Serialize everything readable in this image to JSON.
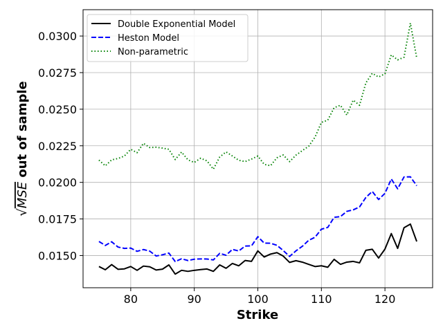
{
  "chart_data": {
    "type": "line",
    "title": "",
    "xlabel": "Strike",
    "ylabel_prefix": "√",
    "ylabel_italic": "MSE",
    "ylabel_suffix": " out of sample",
    "xlim": [
      72.5,
      127.5
    ],
    "ylim": [
      0.0128,
      0.0318
    ],
    "xticks": [
      80,
      90,
      100,
      110,
      120
    ],
    "xtick_labels": [
      "80",
      "90",
      "100",
      "110",
      "120"
    ],
    "yticks": [
      0.015,
      0.0175,
      0.02,
      0.0225,
      0.025,
      0.0275,
      0.03
    ],
    "ytick_labels": [
      "0.0150",
      "0.0175",
      "0.0200",
      "0.0225",
      "0.0250",
      "0.0275",
      "0.0300"
    ],
    "grid": true,
    "legend_position": "top-left",
    "x": [
      75,
      76,
      77,
      78,
      79,
      80,
      81,
      82,
      83,
      84,
      85,
      86,
      87,
      88,
      89,
      90,
      91,
      92,
      93,
      94,
      95,
      96,
      97,
      98,
      99,
      100,
      101,
      102,
      103,
      104,
      105,
      106,
      107,
      108,
      109,
      110,
      111,
      112,
      113,
      114,
      115,
      116,
      117,
      118,
      119,
      120,
      121,
      122,
      123,
      124,
      125
    ],
    "series": [
      {
        "name": "Double Exponential Model",
        "color": "#000000",
        "style": "solid",
        "values": [
          0.01425,
          0.01403,
          0.01438,
          0.01406,
          0.01409,
          0.01425,
          0.01399,
          0.01428,
          0.01423,
          0.01401,
          0.01407,
          0.01436,
          0.01373,
          0.01399,
          0.01392,
          0.01399,
          0.01404,
          0.01408,
          0.01392,
          0.01436,
          0.01413,
          0.01446,
          0.0143,
          0.01466,
          0.0146,
          0.01532,
          0.0149,
          0.0151,
          0.0152,
          0.01496,
          0.01453,
          0.01465,
          0.01455,
          0.0144,
          0.01425,
          0.0143,
          0.0142,
          0.01474,
          0.0144,
          0.01455,
          0.0146,
          0.0145,
          0.01536,
          0.01543,
          0.01483,
          0.01544,
          0.0165,
          0.01549,
          0.0169,
          0.01715,
          0.01596
        ]
      },
      {
        "name": "Heston Model",
        "color": "#0000ff",
        "style": "dashed",
        "values": [
          0.01596,
          0.01569,
          0.01594,
          0.01558,
          0.01549,
          0.01551,
          0.01529,
          0.01541,
          0.0153,
          0.01497,
          0.01505,
          0.01517,
          0.01459,
          0.01478,
          0.01466,
          0.01475,
          0.01477,
          0.01476,
          0.0147,
          0.01515,
          0.01502,
          0.01542,
          0.01531,
          0.01565,
          0.01566,
          0.01629,
          0.01585,
          0.01584,
          0.0157,
          0.01534,
          0.01494,
          0.01532,
          0.01563,
          0.01604,
          0.01625,
          0.0168,
          0.01692,
          0.01761,
          0.01766,
          0.01802,
          0.01812,
          0.01832,
          0.01897,
          0.01938,
          0.01883,
          0.01925,
          0.02023,
          0.01956,
          0.02037,
          0.02038,
          0.01977
        ]
      },
      {
        "name": "Non-parametric",
        "color": "#008000",
        "style": "dotted",
        "values": [
          0.02152,
          0.02113,
          0.02154,
          0.02163,
          0.0218,
          0.02226,
          0.02203,
          0.02267,
          0.02238,
          0.0224,
          0.02234,
          0.02226,
          0.02156,
          0.02207,
          0.02154,
          0.02136,
          0.02165,
          0.02147,
          0.0209,
          0.02173,
          0.02208,
          0.0218,
          0.02151,
          0.02142,
          0.02159,
          0.0218,
          0.02123,
          0.02114,
          0.02168,
          0.02187,
          0.02142,
          0.02186,
          0.02217,
          0.02247,
          0.02309,
          0.0241,
          0.02425,
          0.0251,
          0.02527,
          0.0246,
          0.02562,
          0.02527,
          0.0268,
          0.02745,
          0.0272,
          0.02742,
          0.02871,
          0.02837,
          0.02855,
          0.03088,
          0.02849
        ]
      }
    ]
  }
}
